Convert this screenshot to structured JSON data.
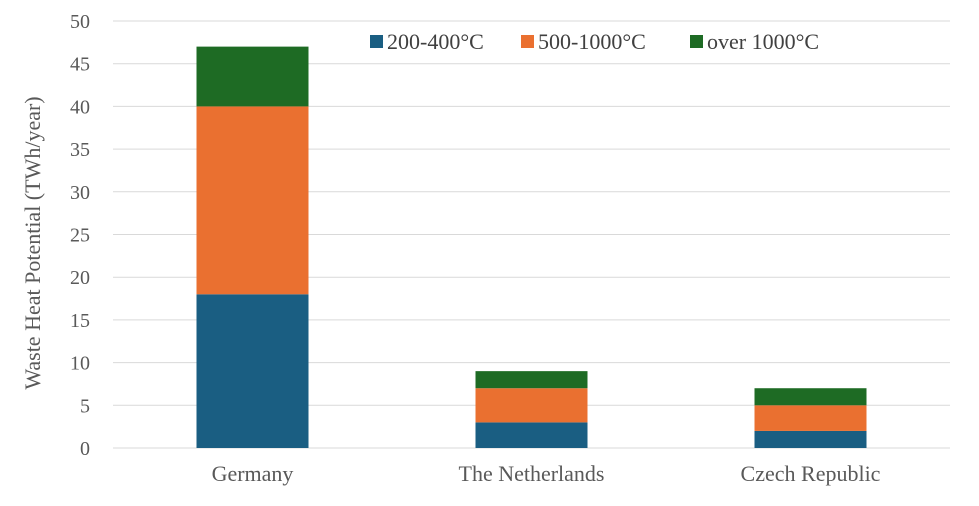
{
  "chart_data": {
    "type": "bar",
    "stacked": true,
    "categories": [
      "Germany",
      "The Netherlands",
      "Czech Republic"
    ],
    "series": [
      {
        "name": "200-400°C",
        "color": "#1a5e82",
        "values": [
          18,
          3,
          2
        ]
      },
      {
        "name": "500-1000°C",
        "color": "#ea7030",
        "values": [
          22,
          4,
          3
        ]
      },
      {
        "name": "over 1000°C",
        "color": "#1e6b24",
        "values": [
          7,
          2,
          2
        ]
      }
    ],
    "title": "",
    "xlabel": "",
    "ylabel": "Waste Heat Potential (TWh/year)",
    "ylim": [
      0,
      50
    ],
    "yticks": [
      0,
      5,
      10,
      15,
      20,
      25,
      30,
      35,
      40,
      45,
      50
    ],
    "grid": true,
    "legend_position": "top-right"
  }
}
